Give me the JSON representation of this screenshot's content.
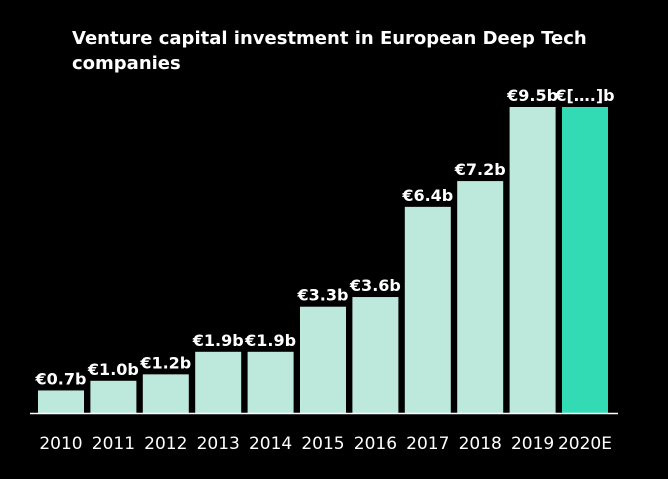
{
  "chart_data": {
    "type": "bar",
    "title": "Venture capital investment in European Deep  Tech companies",
    "xlabel": "",
    "ylabel": "",
    "ylim": [
      0,
      9.5
    ],
    "categories": [
      "2010",
      "2011",
      "2012",
      "2013",
      "2014",
      "2015",
      "2016",
      "2017",
      "2018",
      "2019",
      "2020E"
    ],
    "values": [
      0.7,
      1.0,
      1.2,
      1.9,
      1.9,
      3.3,
      3.6,
      6.4,
      7.2,
      9.5,
      9.5
    ],
    "data_labels": [
      "€0.7b",
      "€1.0b",
      "€1.2b",
      "€1.9b",
      "€1.9b",
      "€3.3b",
      "€3.6b",
      "€6.4b",
      "€7.2b",
      "€9.5b",
      "€[….]b"
    ],
    "grid": false,
    "legend": "none",
    "colors": {
      "background": "#000000",
      "bar": "#bde8dc",
      "highlight_bar": "#33dbb4",
      "text": "#ffffff",
      "axis": "#ffffff"
    },
    "highlight_index": 10
  }
}
